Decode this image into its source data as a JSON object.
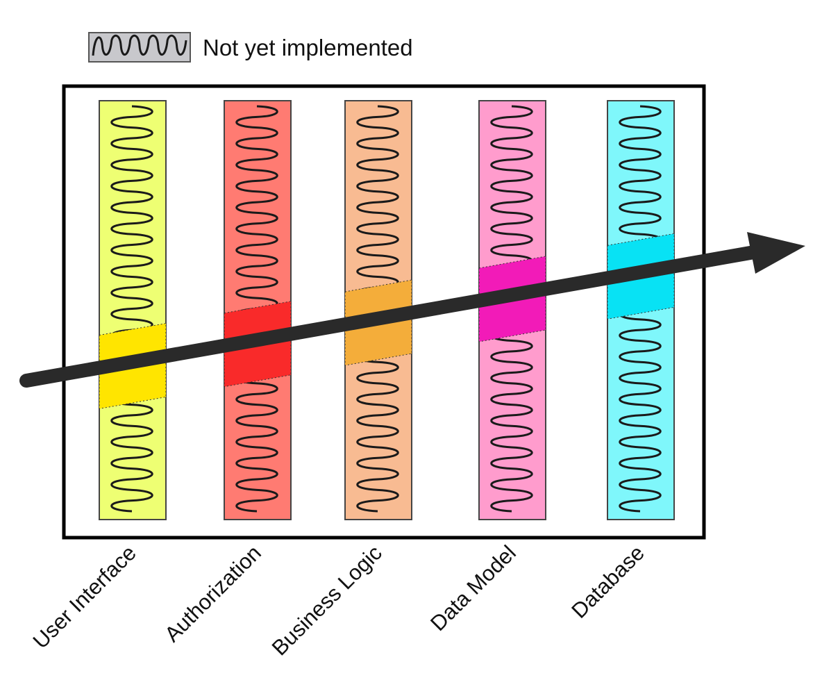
{
  "legend": {
    "label": "Not yet implemented",
    "symbol": "squiggle-icon",
    "fill": "#c8c8cc"
  },
  "layers": [
    {
      "id": "user-interface",
      "label": "User Interface",
      "color": "#eeff73",
      "slice_color": "#ffe500"
    },
    {
      "id": "authorization",
      "label": "Authorization",
      "color": "#ff7b72",
      "slice_color": "#f92a2a"
    },
    {
      "id": "business-logic",
      "label": "Business Logic",
      "color": "#f8bb92",
      "slice_color": "#f4ad3a"
    },
    {
      "id": "data-model",
      "label": "Data Model",
      "color": "#ff9ccd",
      "slice_color": "#f21bb8"
    },
    {
      "id": "database",
      "label": "Database",
      "color": "#7ff7fb",
      "slice_color": "#08e2f4"
    }
  ],
  "arrow": {
    "icon": "arrow-right-icon",
    "color": "#2a2a2a"
  }
}
